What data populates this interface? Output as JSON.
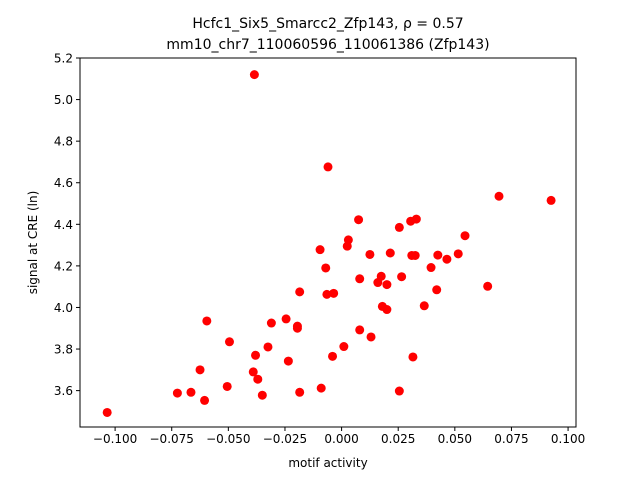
{
  "chart_data": {
    "type": "scatter",
    "title_line1": "Hcfc1_Six5_Smarcc2_Zfp143, ρ = 0.57",
    "title_line2": "mm10_chr7_110060596_110061386 (Zfp143)",
    "xlabel": "motif activity",
    "ylabel": "signal at CRE (ln)",
    "xlim": [
      -0.1155,
      0.1035
    ],
    "ylim": [
      3.425,
      5.2
    ],
    "x_ticks": [
      -0.1,
      -0.075,
      -0.05,
      -0.025,
      0.0,
      0.025,
      0.05,
      0.075,
      0.1
    ],
    "x_tick_labels": [
      "−0.100",
      "−0.075",
      "−0.050",
      "−0.025",
      "0.000",
      "0.025",
      "0.050",
      "0.075",
      "0.100"
    ],
    "y_ticks": [
      3.6,
      3.8,
      4.0,
      4.2,
      4.4,
      4.6,
      4.8,
      5.0,
      5.2
    ],
    "y_tick_labels": [
      "3.6",
      "3.8",
      "4.0",
      "4.2",
      "4.4",
      "4.6",
      "4.8",
      "5.0",
      "5.2"
    ],
    "grid": false,
    "marker_color": "#ff0000",
    "points": [
      {
        "x": -0.1035,
        "y": 3.495
      },
      {
        "x": -0.0725,
        "y": 3.588
      },
      {
        "x": -0.0665,
        "y": 3.592
      },
      {
        "x": -0.0605,
        "y": 3.553
      },
      {
        "x": -0.0625,
        "y": 3.7
      },
      {
        "x": -0.0595,
        "y": 3.935
      },
      {
        "x": -0.0505,
        "y": 3.62
      },
      {
        "x": -0.0495,
        "y": 3.835
      },
      {
        "x": -0.0385,
        "y": 5.12
      },
      {
        "x": -0.039,
        "y": 3.69
      },
      {
        "x": -0.038,
        "y": 3.77
      },
      {
        "x": -0.037,
        "y": 3.655
      },
      {
        "x": -0.035,
        "y": 3.578
      },
      {
        "x": -0.0325,
        "y": 3.81
      },
      {
        "x": -0.031,
        "y": 3.925
      },
      {
        "x": -0.0245,
        "y": 3.945
      },
      {
        "x": -0.0235,
        "y": 3.742
      },
      {
        "x": -0.0195,
        "y": 3.9
      },
      {
        "x": -0.0195,
        "y": 3.91
      },
      {
        "x": -0.0185,
        "y": 4.075
      },
      {
        "x": -0.0185,
        "y": 3.592
      },
      {
        "x": -0.0095,
        "y": 4.278
      },
      {
        "x": -0.009,
        "y": 3.612
      },
      {
        "x": -0.007,
        "y": 4.19
      },
      {
        "x": -0.0065,
        "y": 4.063
      },
      {
        "x": -0.006,
        "y": 4.676
      },
      {
        "x": -0.004,
        "y": 3.765
      },
      {
        "x": -0.0035,
        "y": 4.068
      },
      {
        "x": 0.001,
        "y": 3.812
      },
      {
        "x": 0.0025,
        "y": 4.295
      },
      {
        "x": 0.003,
        "y": 4.325
      },
      {
        "x": 0.0075,
        "y": 4.422
      },
      {
        "x": 0.008,
        "y": 4.138
      },
      {
        "x": 0.008,
        "y": 3.892
      },
      {
        "x": 0.0125,
        "y": 4.255
      },
      {
        "x": 0.013,
        "y": 3.858
      },
      {
        "x": 0.016,
        "y": 4.12
      },
      {
        "x": 0.0175,
        "y": 4.15
      },
      {
        "x": 0.018,
        "y": 4.005
      },
      {
        "x": 0.02,
        "y": 4.11
      },
      {
        "x": 0.02,
        "y": 3.99
      },
      {
        "x": 0.0215,
        "y": 4.262
      },
      {
        "x": 0.0255,
        "y": 4.385
      },
      {
        "x": 0.0255,
        "y": 3.598
      },
      {
        "x": 0.0265,
        "y": 4.148
      },
      {
        "x": 0.0305,
        "y": 4.415
      },
      {
        "x": 0.031,
        "y": 4.25
      },
      {
        "x": 0.0315,
        "y": 3.762
      },
      {
        "x": 0.0325,
        "y": 4.25
      },
      {
        "x": 0.033,
        "y": 4.425
      },
      {
        "x": 0.0365,
        "y": 4.008
      },
      {
        "x": 0.0395,
        "y": 4.192
      },
      {
        "x": 0.042,
        "y": 4.085
      },
      {
        "x": 0.0425,
        "y": 4.252
      },
      {
        "x": 0.0465,
        "y": 4.232
      },
      {
        "x": 0.0515,
        "y": 4.258
      },
      {
        "x": 0.0545,
        "y": 4.345
      },
      {
        "x": 0.0645,
        "y": 4.102
      },
      {
        "x": 0.0695,
        "y": 4.535
      },
      {
        "x": 0.0925,
        "y": 4.515
      }
    ]
  }
}
